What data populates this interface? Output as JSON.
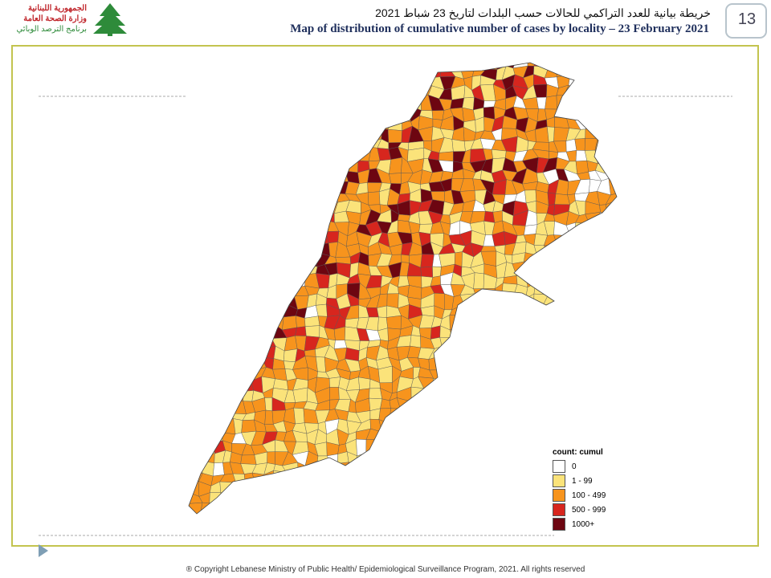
{
  "header": {
    "logo_lines": [
      "الجمهورية اللبنانية",
      "وزارة الصحة العامة",
      "برنامج الترصد الوبائي"
    ],
    "title_ar": "خريطة بيانية للعدد التراكمي للحالات حسب البلدات لتاريخ 23 شباط 2021",
    "title_en": "Map of distribution of cumulative number of cases by locality – 23 February 2021",
    "page_number": "13"
  },
  "legend": {
    "title": "count: cumul",
    "items": [
      {
        "label": "0",
        "color": "#ffffff"
      },
      {
        "label": "1 - 99",
        "color": "#fbe37a"
      },
      {
        "label": "100 - 499",
        "color": "#f7941d"
      },
      {
        "label": "500 - 999",
        "color": "#d7261e"
      },
      {
        "label": "1000+",
        "color": "#6d0611"
      }
    ]
  },
  "footer": {
    "copyright": "® Copyright Lebanese Ministry of Public Health/ Epidemiological Surveillance Program, 2021. All rights reserved"
  }
}
